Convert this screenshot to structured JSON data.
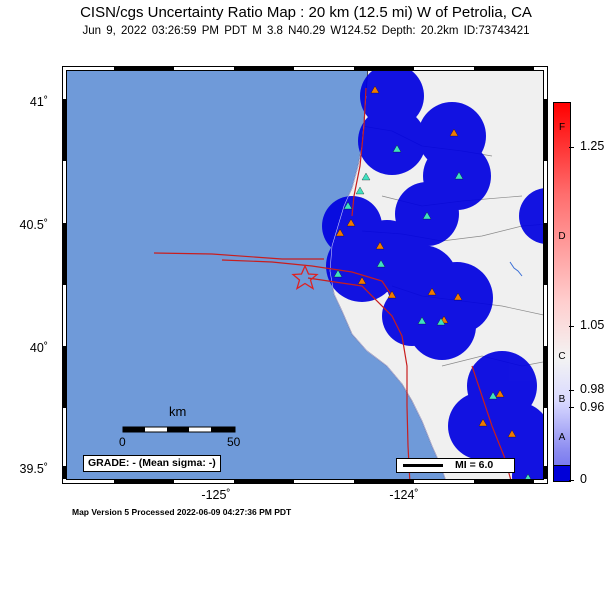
{
  "title": "CISN/cgs Uncertainty Ratio Map : 20 km (12.5 mi) W of Petrolia, CA",
  "subtitle": "Jun  9, 2022 03:26:59 PM PDT   M 3.8   N40.29 W124.52   Depth: 20.2km   ID:73743421",
  "footer": "Map Version 5 Processed 2022-06-09 04:27:36 PM PDT",
  "axes": {
    "lat_labels": [
      "41˚",
      "40.5˚",
      "40˚",
      "39.5˚"
    ],
    "lon_labels": [
      "-125˚",
      "-124˚"
    ]
  },
  "scale_bar": {
    "unit": "km",
    "min_label": "0",
    "max_label": "50"
  },
  "grade": "GRADE: - (Mean sigma: -)",
  "legend": {
    "mi_label": "MI = 6.0"
  },
  "colorbar": {
    "letters": [
      "F",
      "D",
      "C",
      "B",
      "A"
    ],
    "values": [
      "1.25",
      "1.05",
      "0.98",
      "0.96",
      "0"
    ]
  },
  "epicenter": {
    "lat": 40.29,
    "lon": -124.52
  },
  "colors": {
    "ocean": "#6f9ad9",
    "land": "#f0f0f0",
    "uncertainty": "#0000e0",
    "fault": "#c81e1e",
    "coast": "#2a2a2a",
    "station_orange": "#f07a00",
    "station_cyan": "#40e0c0"
  }
}
